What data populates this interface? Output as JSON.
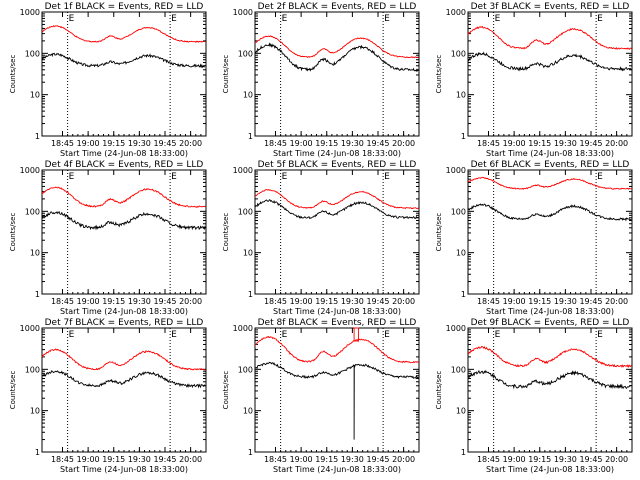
{
  "x_axis": {
    "ticks": [
      "18:45",
      "19:00",
      "19:15",
      "19:30",
      "19:45",
      "20:00"
    ],
    "xlabel": "Start Time (24-Jun-08 18:33:00)",
    "range_minutes_from_start": [
      0,
      96
    ]
  },
  "y_axis": {
    "ylabel": "Counts/sec",
    "scale": "log",
    "ylim": [
      1,
      1000
    ],
    "ticks": [
      "1",
      "10",
      "100",
      "1000"
    ]
  },
  "markers": {
    "labels": [
      "E",
      "E"
    ],
    "dotted_lines_at": [
      "18:48",
      "19:48"
    ]
  },
  "chart_data": [
    {
      "type": "line",
      "title": "Det 1f BLACK = Events, RED = LLD",
      "series": [
        {
          "name": "Events",
          "color": "#000000",
          "base": 50,
          "amp": 45,
          "noise": 0.07
        },
        {
          "name": "LLD",
          "color": "#ff0000",
          "base": 190,
          "amp": 270,
          "noise": 0.03
        }
      ]
    },
    {
      "type": "line",
      "title": "Det 2f BLACK = Events, RED = LLD",
      "series": [
        {
          "name": "Events",
          "color": "#000000",
          "base": 40,
          "amp": 120,
          "noise": 0.07
        },
        {
          "name": "LLD",
          "color": "#ff0000",
          "base": 80,
          "amp": 180,
          "noise": 0.03
        }
      ]
    },
    {
      "type": "line",
      "title": "Det 3f BLACK = Events, RED = LLD",
      "series": [
        {
          "name": "Events",
          "color": "#000000",
          "base": 42,
          "amp": 55,
          "noise": 0.08
        },
        {
          "name": "LLD",
          "color": "#ff0000",
          "base": 130,
          "amp": 300,
          "noise": 0.04
        }
      ]
    },
    {
      "type": "line",
      "title": "Det 4f BLACK = Events, RED = LLD",
      "series": [
        {
          "name": "Events",
          "color": "#000000",
          "base": 40,
          "amp": 55,
          "noise": 0.08
        },
        {
          "name": "LLD",
          "color": "#ff0000",
          "base": 130,
          "amp": 250,
          "noise": 0.04
        }
      ]
    },
    {
      "type": "line",
      "title": "Det 5f BLACK = Events, RED = LLD",
      "series": [
        {
          "name": "Events",
          "color": "#000000",
          "base": 70,
          "amp": 110,
          "noise": 0.06
        },
        {
          "name": "LLD",
          "color": "#ff0000",
          "base": 120,
          "amp": 210,
          "noise": 0.03
        }
      ]
    },
    {
      "type": "line",
      "title": "Det 6f BLACK = Events, RED = LLD",
      "series": [
        {
          "name": "Events",
          "color": "#000000",
          "base": 65,
          "amp": 80,
          "noise": 0.06
        },
        {
          "name": "LLD",
          "color": "#ff0000",
          "base": 350,
          "amp": 300,
          "noise": 0.03
        }
      ]
    },
    {
      "type": "line",
      "title": "Det 7f BLACK = Events, RED = LLD",
      "series": [
        {
          "name": "Events",
          "color": "#000000",
          "base": 40,
          "amp": 50,
          "noise": 0.07
        },
        {
          "name": "LLD",
          "color": "#ff0000",
          "base": 100,
          "amp": 200,
          "noise": 0.04
        }
      ]
    },
    {
      "type": "line",
      "title": "Det 8f BLACK = Events, RED = LLD",
      "series": [
        {
          "name": "Events",
          "color": "#000000",
          "base": 65,
          "amp": 75,
          "noise": 0.06,
          "spike_down_to": 2
        },
        {
          "name": "LLD",
          "color": "#ff0000",
          "base": 150,
          "amp": 450,
          "noise": 0.04,
          "spike_up_to": 1000
        }
      ]
    },
    {
      "type": "line",
      "title": "Det 9f BLACK = Events, RED = LLD",
      "series": [
        {
          "name": "Events",
          "color": "#000000",
          "base": 38,
          "amp": 50,
          "noise": 0.09
        },
        {
          "name": "LLD",
          "color": "#ff0000",
          "base": 120,
          "amp": 220,
          "noise": 0.05
        }
      ]
    }
  ]
}
